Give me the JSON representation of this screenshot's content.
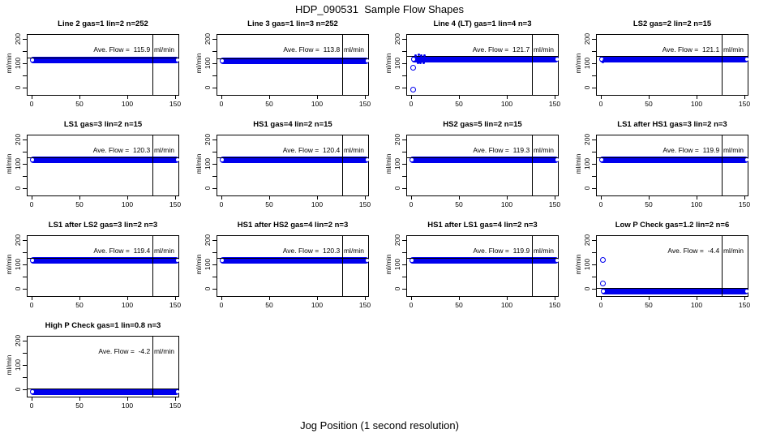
{
  "figure": {
    "title": "HDP_090531  Sample Flow Shapes",
    "xlabel": "Jog Position (1 second resolution)"
  },
  "chart_data": {
    "type": "scatter",
    "title": "HDP_090531  Sample Flow Shapes",
    "xlabel": "Jog Position (1 second resolution)",
    "ylabel": "ml/min",
    "layout": "4x4 grid, 13 panels",
    "xlim": [
      -7,
      159
    ],
    "ylim": [
      -40,
      220
    ],
    "x_ticks": [
      0,
      50,
      100,
      150
    ],
    "y_major_ticks": [
      0,
      100,
      200
    ],
    "y_minor_ticks": [
      50,
      150
    ],
    "vline_x": 125,
    "grid": false,
    "point_color": "#0000EE",
    "subplots": [
      {
        "title": "Line 2 gas=1 lin=2 n=252",
        "ave_flow": 115.9,
        "ave_flow_label": "Ave. Flow =  115.9  ml/min",
        "band": {
          "center": 116,
          "x_start": 0,
          "x_end": 151
        },
        "ref_line": 127,
        "open_points": [],
        "small_points": []
      },
      {
        "title": "Line 3 gas=1 lin=3 n=252",
        "ave_flow": 113.8,
        "ave_flow_label": "Ave. Flow =  113.8  ml/min",
        "band": {
          "center": 114,
          "x_start": 0,
          "x_end": 151
        },
        "ref_line": 125,
        "open_points": [],
        "small_points": []
      },
      {
        "title": "Line 4 (LT) gas=1 lin=4 n=3",
        "ave_flow": 121.7,
        "ave_flow_label": "Ave. Flow =  121.7  ml/min",
        "band": {
          "center": 121,
          "x_start": 2,
          "x_end": 151
        },
        "ref_line": 132,
        "open_points": [
          [
            2,
            85
          ],
          [
            2,
            -8
          ]
        ],
        "small_points": [
          [
            4,
            136
          ],
          [
            7,
            138
          ],
          [
            10,
            136
          ],
          [
            13,
            134
          ],
          [
            6,
            106
          ],
          [
            9,
            105
          ],
          [
            12,
            106
          ]
        ]
      },
      {
        "title": "LS2 gas=2 lin=2 n=15",
        "ave_flow": 121.1,
        "ave_flow_label": "Ave. Flow =  121.1  ml/min",
        "band": {
          "center": 121,
          "x_start": 0,
          "x_end": 151
        },
        "ref_line": 132,
        "open_points": [],
        "small_points": [
          [
            1,
            110
          ],
          [
            2,
            114
          ]
        ]
      },
      {
        "title": "LS1 gas=3 lin=2 n=15",
        "ave_flow": 120.3,
        "ave_flow_label": "Ave. Flow =  120.3  ml/min",
        "band": {
          "center": 120,
          "x_start": 0,
          "x_end": 151
        },
        "ref_line": 131,
        "open_points": [],
        "small_points": []
      },
      {
        "title": "HS1 gas=4 lin=2 n=15",
        "ave_flow": 120.4,
        "ave_flow_label": "Ave. Flow =  120.4  ml/min",
        "band": {
          "center": 120,
          "x_start": 0,
          "x_end": 151
        },
        "ref_line": 131,
        "open_points": [],
        "small_points": []
      },
      {
        "title": "HS2 gas=5 lin=2 n=15",
        "ave_flow": 119.3,
        "ave_flow_label": "Ave. Flow =  119.3  ml/min",
        "band": {
          "center": 119,
          "x_start": 0,
          "x_end": 151
        },
        "ref_line": 130,
        "open_points": [],
        "small_points": []
      },
      {
        "title": "LS1 after HS1 gas=3 lin=2 n=3",
        "ave_flow": 119.9,
        "ave_flow_label": "Ave. Flow =  119.9  ml/min",
        "band": {
          "center": 120,
          "x_start": 0,
          "x_end": 151
        },
        "ref_line": 131,
        "open_points": [],
        "small_points": []
      },
      {
        "title": "LS1 after LS2 gas=3 lin=2 n=3",
        "ave_flow": 119.4,
        "ave_flow_label": "Ave. Flow =  119.4  ml/min",
        "band": {
          "center": 119,
          "x_start": 0,
          "x_end": 151
        },
        "ref_line": 130,
        "open_points": [],
        "small_points": []
      },
      {
        "title": "HS1 after HS2 gas=4 lin=2 n=3",
        "ave_flow": 120.3,
        "ave_flow_label": "Ave. Flow =  120.3  ml/min",
        "band": {
          "center": 120,
          "x_start": 0,
          "x_end": 151
        },
        "ref_line": 131,
        "open_points": [],
        "small_points": []
      },
      {
        "title": "HS1 after LS1 gas=4 lin=2 n=3",
        "ave_flow": 119.9,
        "ave_flow_label": "Ave. Flow =  119.9  ml/min",
        "band": {
          "center": 120,
          "x_start": 0,
          "x_end": 151
        },
        "ref_line": 131,
        "open_points": [],
        "small_points": []
      },
      {
        "title": "Low P Check gas=1.2 lin=2 n=6",
        "ave_flow": -4.4,
        "ave_flow_label": "Ave. Flow =  -4.4  ml/min",
        "band": {
          "center": -5,
          "x_start": 2,
          "x_end": 151
        },
        "ref_line": 6,
        "open_points": [
          [
            2,
            120
          ],
          [
            2,
            25
          ]
        ],
        "small_points": []
      },
      {
        "title": "High P Check gas=1 lin=0.8 n=3",
        "ave_flow": -4.2,
        "ave_flow_label": "Ave. Flow =  -4.2  ml/min",
        "band": {
          "center": -5,
          "x_start": 0,
          "x_end": 151
        },
        "ref_line": 6,
        "open_points": [],
        "small_points": []
      }
    ]
  }
}
